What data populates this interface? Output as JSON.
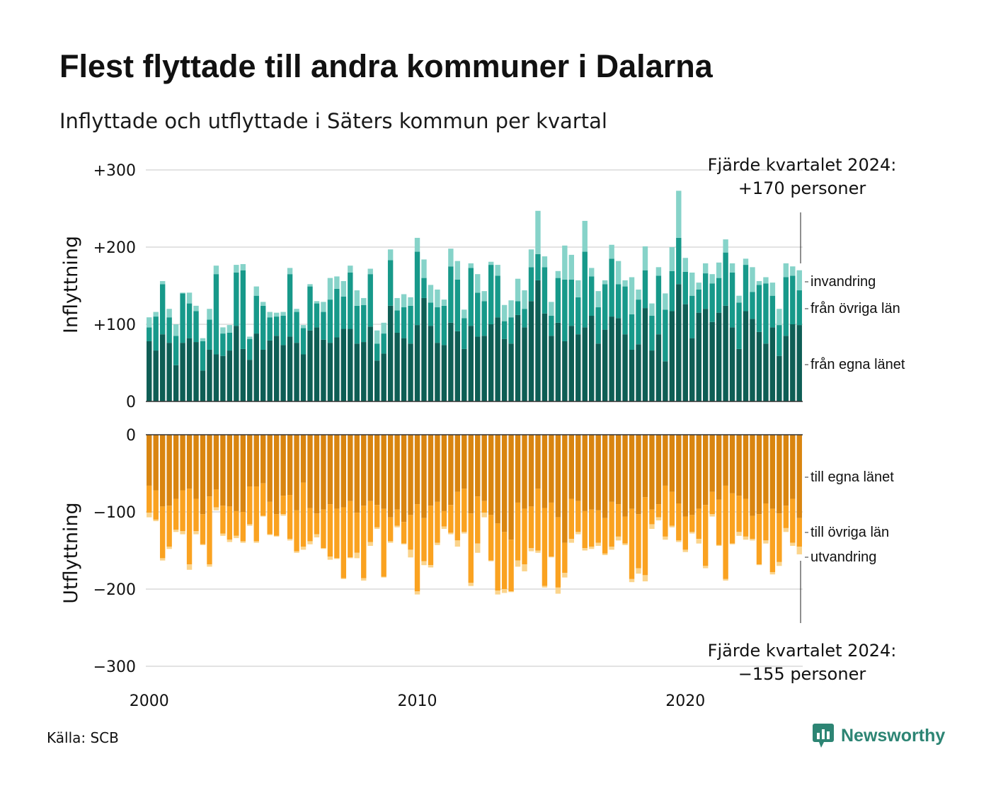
{
  "page": {
    "title": "Flest flyttade till andra kommuner i Dalarna",
    "subtitle": "Inflyttade och utflyttade i Säters kommun per kvartal",
    "source": "Källa: SCB",
    "brand": "Newsworthy"
  },
  "colors": {
    "in_own": "#0e5e55",
    "in_other": "#17998a",
    "in_abroad": "#86d3c9",
    "out_own": "#d98510",
    "out_other": "#faa220",
    "out_abroad": "#fbd48c",
    "grid": "#e3e3e3",
    "axis": "#333333",
    "brand": "#2d8574"
  },
  "chart_data": {
    "type": "bar",
    "stacked": true,
    "x_unit": "quarter",
    "x_ticks": [
      "2000",
      "2010",
      "2020"
    ],
    "grid": true,
    "in_panel": {
      "ylabel": "Inflyttning",
      "ylim": [
        0,
        300
      ],
      "ticks": [
        {
          "v": 0,
          "label": "0"
        },
        {
          "v": 100,
          "label": "+100"
        },
        {
          "v": 200,
          "label": "+200"
        },
        {
          "v": 300,
          "label": "+300"
        }
      ],
      "series": [
        {
          "name": "från egna länet",
          "color": "#0e5e55",
          "values": [
            78,
            66,
            87,
            76,
            47,
            76,
            82,
            77,
            40,
            67,
            61,
            59,
            66,
            98,
            68,
            54,
            88,
            67,
            79,
            85,
            73,
            84,
            76,
            61,
            92,
            96,
            80,
            76,
            83,
            94,
            94,
            75,
            77,
            97,
            53,
            62,
            124,
            89,
            82,
            75,
            99,
            134,
            98,
            76,
            73,
            102,
            91,
            68,
            98,
            84,
            85,
            100,
            109,
            81,
            75,
            112,
            96,
            130,
            157,
            114,
            85,
            102,
            78,
            98,
            87,
            96,
            111,
            75,
            93,
            110,
            108,
            87,
            67,
            74,
            121,
            66,
            87,
            52,
            117,
            152,
            126,
            82,
            115,
            120,
            103,
            115,
            124,
            96,
            68,
            117,
            107,
            90,
            75,
            96,
            59,
            85,
            100,
            99
          ]
        },
        {
          "name": "från övriga län",
          "color": "#17998a",
          "values": [
            18,
            44,
            65,
            33,
            38,
            64,
            45,
            40,
            38,
            39,
            104,
            29,
            23,
            69,
            102,
            27,
            49,
            57,
            30,
            25,
            38,
            81,
            40,
            34,
            57,
            31,
            36,
            56,
            63,
            42,
            73,
            49,
            48,
            68,
            22,
            26,
            59,
            29,
            40,
            49,
            95,
            26,
            30,
            46,
            51,
            73,
            67,
            40,
            75,
            57,
            45,
            77,
            54,
            23,
            34,
            18,
            24,
            44,
            34,
            60,
            26,
            58,
            80,
            60,
            48,
            98,
            51,
            47,
            59,
            75,
            44,
            62,
            46,
            58,
            49,
            45,
            76,
            67,
            52,
            60,
            42,
            55,
            30,
            46,
            50,
            45,
            69,
            71,
            60,
            60,
            35,
            61,
            78,
            41,
            40,
            76,
            63,
            45
          ]
        },
        {
          "name": "invandring",
          "color": "#86d3c9",
          "values": [
            13,
            6,
            4,
            11,
            15,
            1,
            14,
            7,
            4,
            14,
            11,
            8,
            10,
            10,
            8,
            3,
            12,
            5,
            7,
            5,
            5,
            8,
            4,
            4,
            3,
            3,
            13,
            28,
            16,
            20,
            9,
            20,
            9,
            7,
            17,
            14,
            14,
            16,
            17,
            11,
            18,
            24,
            23,
            23,
            8,
            23,
            24,
            11,
            6,
            24,
            13,
            4,
            14,
            21,
            22,
            29,
            24,
            23,
            56,
            14,
            18,
            9,
            44,
            32,
            22,
            40,
            11,
            21,
            5,
            18,
            30,
            8,
            48,
            13,
            31,
            16,
            11,
            21,
            31,
            61,
            18,
            30,
            9,
            13,
            12,
            20,
            17,
            12,
            9,
            8,
            32,
            5,
            8,
            17,
            21,
            18,
            12,
            26
          ]
        }
      ],
      "annotation": {
        "line1": "Fjärde kvartalet 2024:",
        "line2": "+170 personer"
      },
      "labels": [
        "invandring",
        "från övriga län",
        "från egna länet"
      ]
    },
    "out_panel": {
      "ylabel": "Utflyttning",
      "ylim": [
        -300,
        0
      ],
      "ticks": [
        {
          "v": 0,
          "label": "0"
        },
        {
          "v": -100,
          "label": "−100"
        },
        {
          "v": -200,
          "label": "−200"
        },
        {
          "v": -300,
          "label": "−300"
        }
      ],
      "series": [
        {
          "name": "till egna länet",
          "color": "#d98510",
          "values": [
            -66,
            -72,
            -93,
            -92,
            -83,
            -72,
            -70,
            -83,
            -103,
            -80,
            -71,
            -92,
            -93,
            -99,
            -100,
            -67,
            -67,
            -63,
            -87,
            -103,
            -79,
            -78,
            -98,
            -62,
            -95,
            -102,
            -97,
            -90,
            -96,
            -94,
            -86,
            -101,
            -92,
            -86,
            -91,
            -96,
            -107,
            -97,
            -113,
            -104,
            -90,
            -108,
            -92,
            -87,
            -99,
            -91,
            -74,
            -70,
            -102,
            -80,
            -86,
            -104,
            -115,
            -126,
            -136,
            -88,
            -96,
            -93,
            -70,
            -95,
            -88,
            -107,
            -140,
            -83,
            -86,
            -99,
            -97,
            -98,
            -108,
            -87,
            -90,
            -106,
            -96,
            -103,
            -81,
            -97,
            -90,
            -66,
            -74,
            -89,
            -106,
            -104,
            -96,
            -91,
            -74,
            -84,
            -66,
            -76,
            -79,
            -83,
            -105,
            -103,
            -89,
            -96,
            -102,
            -92,
            -83,
            -108
          ]
        },
        {
          "name": "till övriga län",
          "color": "#faa220",
          "values": [
            -35,
            -38,
            -67,
            -53,
            -40,
            -53,
            -98,
            -42,
            -39,
            -88,
            -23,
            -36,
            -43,
            -32,
            -38,
            -49,
            -71,
            -42,
            -42,
            -28,
            -24,
            -57,
            -53,
            -83,
            -43,
            -27,
            -50,
            -68,
            -64,
            -92,
            -73,
            -52,
            -94,
            -53,
            -29,
            -88,
            -31,
            -21,
            -28,
            -45,
            -113,
            -56,
            -77,
            -53,
            -20,
            -36,
            -63,
            -56,
            -90,
            -61,
            -15,
            -59,
            -87,
            -74,
            -67,
            -75,
            -72,
            -54,
            -80,
            -101,
            -70,
            -91,
            -39,
            -52,
            -40,
            -48,
            -48,
            -42,
            -46,
            -58,
            -42,
            -35,
            -91,
            -70,
            -101,
            -19,
            -17,
            -66,
            -44,
            -48,
            -43,
            -22,
            -39,
            -79,
            -29,
            -59,
            -121,
            -65,
            -47,
            -49,
            -30,
            -65,
            -48,
            -82,
            -63,
            -29,
            -57,
            -37
          ]
        },
        {
          "name": "utvandring",
          "color": "#fbd48c",
          "values": [
            -6,
            -2,
            -3,
            -3,
            -3,
            -4,
            -7,
            -4,
            -1,
            -3,
            -4,
            -3,
            -3,
            -3,
            -2,
            -2,
            -2,
            -1,
            -1,
            -1,
            -2,
            -2,
            -2,
            -4,
            -4,
            -4,
            -1,
            -4,
            -1,
            -1,
            -1,
            -7,
            -3,
            -5,
            -2,
            -1,
            -2,
            -2,
            -1,
            -10,
            -4,
            -5,
            -3,
            -3,
            -3,
            -2,
            -8,
            -2,
            -4,
            -12,
            -6,
            -1,
            -5,
            -5,
            -1,
            -8,
            -9,
            -4,
            -3,
            -2,
            -1,
            -8,
            -6,
            -5,
            -3,
            -3,
            -3,
            -4,
            -2,
            -4,
            -5,
            -2,
            -4,
            -7,
            -8,
            -6,
            -4,
            -4,
            -2,
            -2,
            -3,
            -2,
            -6,
            -3,
            -3,
            -1,
            -2,
            -1,
            -5,
            -4,
            -2,
            -1,
            -4,
            -3,
            -5,
            -5,
            -4,
            -10
          ]
        }
      ],
      "annotation": {
        "line1": "Fjärde kvartalet 2024:",
        "line2": "−155 personer"
      },
      "labels": [
        "till egna länet",
        "till övriga län",
        "utvandring"
      ]
    }
  }
}
